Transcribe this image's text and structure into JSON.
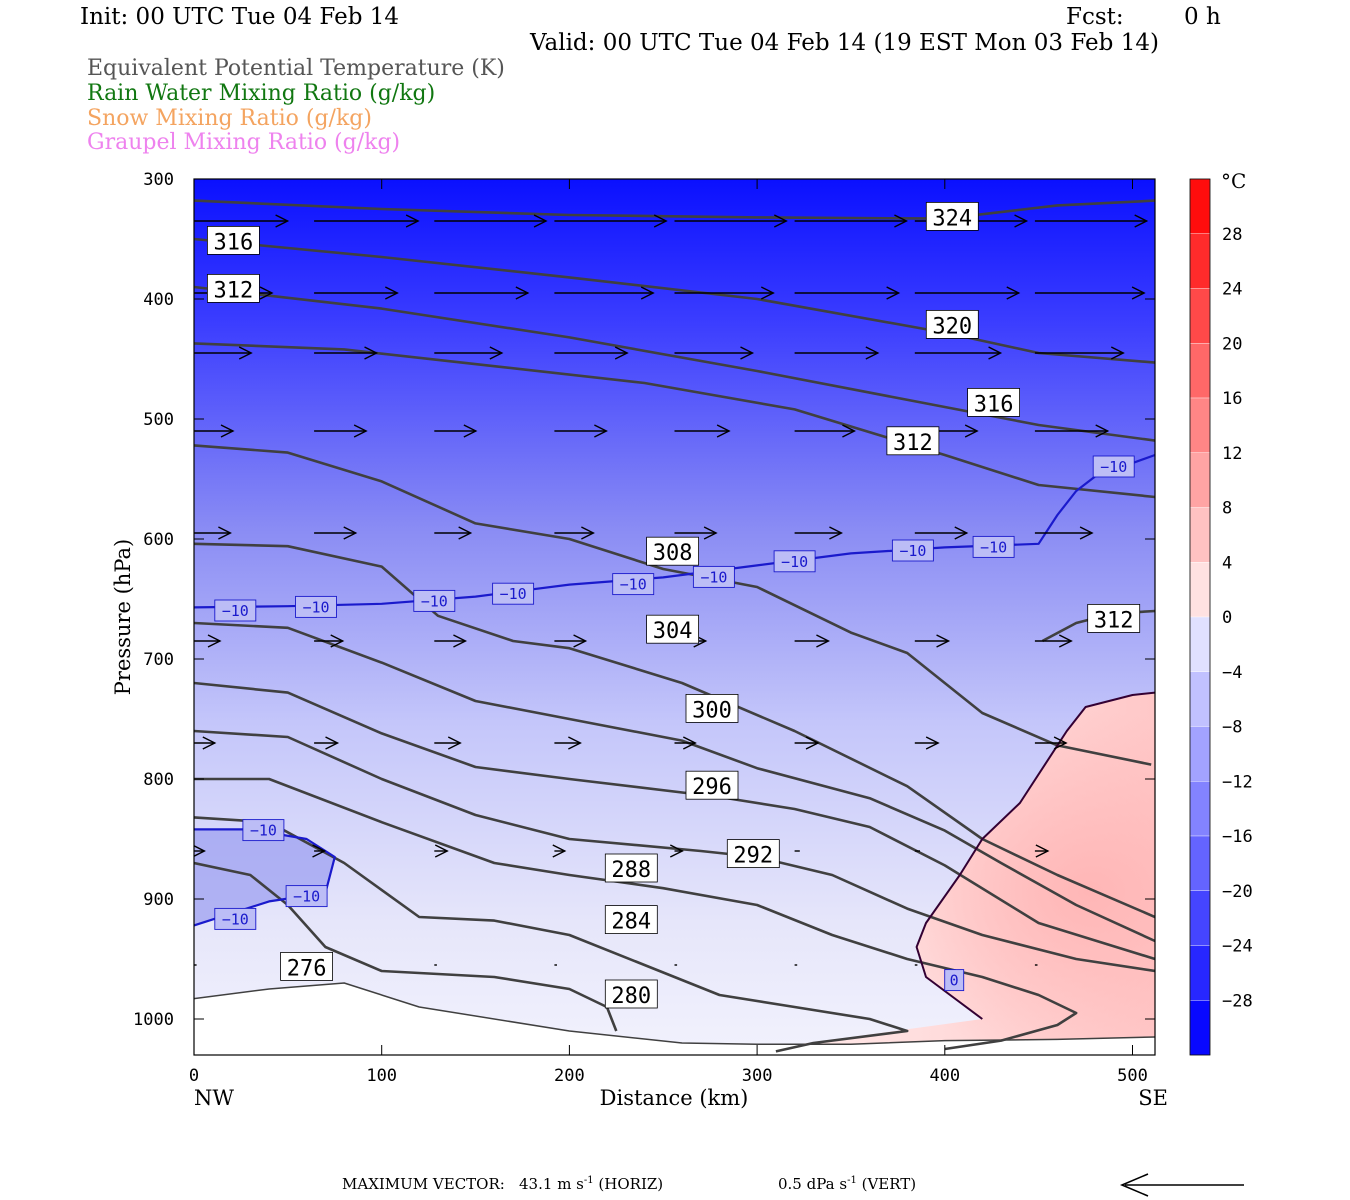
{
  "header": {
    "init": "Init: 00 UTC Tue 04 Feb 14",
    "fcst_label": "Fcst:",
    "fcst_value": "0 h",
    "valid": "Valid: 00 UTC Tue 04 Feb 14 (19 EST Mon 03 Feb 14)"
  },
  "legend": [
    {
      "text": "Equivalent Potential Temperature (K)",
      "color": "#555555"
    },
    {
      "text": "Rain Water Mixing Ratio (g/kg)",
      "color": "#117711"
    },
    {
      "text": "Snow Mixing Ratio (g/kg)",
      "color": "#f4a460"
    },
    {
      "text": "Graupel Mixing Ratio (g/kg)",
      "color": "#ee82ee"
    }
  ],
  "footer": {
    "max_vector_label": "MAXIMUM VECTOR:",
    "horiz_value": "43.1",
    "horiz_unit": "m s",
    "horiz_exp": "-1",
    "horiz_tag": "(HORIZ)",
    "vert_value": "0.5",
    "vert_unit": "dPa s",
    "vert_exp": "-1",
    "vert_tag": "(VERT)"
  },
  "chart_data": {
    "type": "cross-section",
    "xlabel": "Distance (km)",
    "ylabel": "Pressure (hPa)",
    "xlim": [
      0,
      512
    ],
    "ylim": [
      1030,
      300
    ],
    "x_ticks": [
      0,
      100,
      200,
      300,
      400,
      500
    ],
    "y_ticks": [
      300,
      400,
      500,
      600,
      700,
      800,
      900,
      1000
    ],
    "x_end_labels": {
      "left": "NW",
      "right": "SE"
    },
    "colorbar": {
      "unit": "°C",
      "tick_labels": [
        "28",
        "24",
        "20",
        "16",
        "12",
        "8",
        "4",
        "0",
        "−4",
        "−8",
        "−12",
        "−16",
        "−20",
        "−24",
        "−28"
      ],
      "tick_values": [
        28,
        24,
        20,
        16,
        12,
        8,
        4,
        0,
        -4,
        -8,
        -12,
        -16,
        -20,
        -24,
        -28
      ],
      "range": [
        -32,
        32
      ],
      "cold_color": "#0000ff",
      "warm_color": "#ff0000"
    },
    "theta_e_contours": [
      {
        "label": "324",
        "color": "#404040",
        "points": [
          [
            0,
            318
          ],
          [
            100,
            325
          ],
          [
            200,
            330
          ],
          [
            300,
            332
          ],
          [
            400,
            333
          ],
          [
            460,
            322
          ],
          [
            512,
            318
          ]
        ]
      },
      {
        "label": "320",
        "color": "#404040",
        "points": [
          [
            0,
            350
          ],
          [
            100,
            365
          ],
          [
            200,
            382
          ],
          [
            300,
            400
          ],
          [
            400,
            428
          ],
          [
            450,
            445
          ],
          [
            512,
            453
          ]
        ]
      },
      {
        "label": "316",
        "color": "#404040",
        "points": [
          [
            0,
            390
          ],
          [
            100,
            408
          ],
          [
            200,
            432
          ],
          [
            300,
            460
          ],
          [
            400,
            490
          ],
          [
            450,
            505
          ],
          [
            512,
            518
          ]
        ]
      },
      {
        "label": "312",
        "color": "#404040",
        "points": [
          [
            0,
            437
          ],
          [
            80,
            442
          ],
          [
            160,
            456
          ],
          [
            240,
            470
          ],
          [
            320,
            492
          ],
          [
            400,
            530
          ],
          [
            450,
            555
          ],
          [
            512,
            565
          ]
        ]
      },
      {
        "label": "308",
        "color": "#404040",
        "points": [
          [
            0,
            522
          ],
          [
            50,
            528
          ],
          [
            100,
            552
          ],
          [
            150,
            587
          ],
          [
            200,
            600
          ],
          [
            250,
            625
          ],
          [
            300,
            640
          ],
          [
            350,
            678
          ],
          [
            380,
            695
          ],
          [
            420,
            745
          ],
          [
            460,
            772
          ],
          [
            510,
            788
          ]
        ]
      },
      {
        "label": "304",
        "color": "#404040",
        "points": [
          [
            0,
            604
          ],
          [
            50,
            606
          ],
          [
            100,
            623
          ],
          [
            130,
            664
          ],
          [
            170,
            685
          ],
          [
            200,
            691
          ],
          [
            260,
            720
          ],
          [
            320,
            760
          ],
          [
            380,
            806
          ],
          [
            420,
            850
          ],
          [
            460,
            880
          ],
          [
            512,
            915
          ]
        ]
      },
      {
        "label": "300",
        "color": "#404040",
        "points": [
          [
            0,
            670
          ],
          [
            50,
            674
          ],
          [
            100,
            703
          ],
          [
            150,
            735
          ],
          [
            200,
            750
          ],
          [
            260,
            768
          ],
          [
            300,
            791
          ],
          [
            360,
            816
          ],
          [
            400,
            843
          ],
          [
            430,
            870
          ],
          [
            470,
            905
          ],
          [
            512,
            935
          ]
        ]
      },
      {
        "label": "296",
        "color": "#404040",
        "points": [
          [
            0,
            720
          ],
          [
            50,
            728
          ],
          [
            100,
            762
          ],
          [
            150,
            790
          ],
          [
            200,
            800
          ],
          [
            280,
            815
          ],
          [
            320,
            825
          ],
          [
            360,
            840
          ],
          [
            400,
            872
          ],
          [
            450,
            920
          ],
          [
            512,
            950
          ]
        ]
      },
      {
        "label": "292",
        "color": "#404040",
        "points": [
          [
            0,
            760
          ],
          [
            50,
            765
          ],
          [
            100,
            800
          ],
          [
            150,
            830
          ],
          [
            200,
            850
          ],
          [
            270,
            860
          ],
          [
            300,
            865
          ],
          [
            340,
            880
          ],
          [
            380,
            908
          ],
          [
            420,
            930
          ],
          [
            470,
            950
          ],
          [
            512,
            960
          ]
        ]
      },
      {
        "label": "288",
        "color": "#404040",
        "points": [
          [
            0,
            800
          ],
          [
            40,
            800
          ],
          [
            100,
            836
          ],
          [
            160,
            870
          ],
          [
            200,
            880
          ],
          [
            250,
            891
          ],
          [
            300,
            905
          ],
          [
            340,
            930
          ],
          [
            380,
            950
          ],
          [
            420,
            965
          ],
          [
            450,
            980
          ],
          [
            470,
            995
          ],
          [
            460,
            1005
          ],
          [
            430,
            1018
          ],
          [
            400,
            1025
          ]
        ]
      },
      {
        "label": "284",
        "color": "#404040",
        "points": [
          [
            0,
            832
          ],
          [
            40,
            836
          ],
          [
            80,
            870
          ],
          [
            120,
            915
          ],
          [
            160,
            918
          ],
          [
            200,
            930
          ],
          [
            240,
            955
          ],
          [
            280,
            980
          ],
          [
            320,
            990
          ],
          [
            360,
            1000
          ],
          [
            380,
            1010
          ],
          [
            330,
            1020
          ],
          [
            310,
            1027
          ]
        ]
      },
      {
        "label": "280",
        "color": "#404040",
        "points": [
          [
            0,
            870
          ],
          [
            30,
            880
          ],
          [
            50,
            905
          ],
          [
            70,
            940
          ],
          [
            100,
            960
          ],
          [
            160,
            965
          ],
          [
            200,
            975
          ],
          [
            220,
            990
          ],
          [
            225,
            1010
          ]
        ]
      },
      {
        "label": "276",
        "color": "#404040",
        "points": [
          [
            0,
            983
          ],
          [
            40,
            975
          ],
          [
            80,
            970
          ],
          [
            120,
            990
          ],
          [
            200,
            1010
          ],
          [
            260,
            1020
          ],
          [
            300,
            1021
          ],
          [
            350,
            1021
          ],
          [
            400,
            1018
          ],
          [
            460,
            1017
          ],
          [
            512,
            1015
          ]
        ]
      },
      {
        "label": "312",
        "color": "#404040",
        "points": [
          [
            452,
            685
          ],
          [
            470,
            670
          ],
          [
            490,
            662
          ],
          [
            512,
            660
          ]
        ]
      }
    ],
    "isotherm_minus10": {
      "label": "−10",
      "color": "#1a1acc",
      "points": [
        [
          0,
          657
        ],
        [
          50,
          656
        ],
        [
          100,
          654
        ],
        [
          150,
          648
        ],
        [
          200,
          638
        ],
        [
          250,
          632
        ],
        [
          300,
          622
        ],
        [
          350,
          612
        ],
        [
          400,
          607
        ],
        [
          450,
          604
        ],
        [
          460,
          580
        ],
        [
          470,
          560
        ],
        [
          480,
          548
        ],
        [
          512,
          530
        ]
      ]
    },
    "isotherm_minus10_low": {
      "label": "−10",
      "color": "#1a1acc",
      "points": [
        [
          0,
          842
        ],
        [
          30,
          842
        ],
        [
          60,
          850
        ],
        [
          75,
          865
        ],
        [
          70,
          895
        ],
        [
          40,
          902
        ],
        [
          0,
          922
        ]
      ]
    },
    "freezing_line": {
      "label": "0",
      "color": "#330033",
      "points": [
        [
          420,
          1000
        ],
        [
          390,
          965
        ],
        [
          385,
          940
        ],
        [
          390,
          920
        ],
        [
          408,
          880
        ],
        [
          420,
          850
        ],
        [
          440,
          820
        ],
        [
          465,
          760
        ],
        [
          475,
          740
        ],
        [
          500,
          730
        ],
        [
          512,
          728
        ]
      ]
    },
    "contour_labels": [
      {
        "text": "324",
        "x": 404,
        "y": 332
      },
      {
        "text": "316",
        "x": 21,
        "y": 352
      },
      {
        "text": "312",
        "x": 21,
        "y": 392
      },
      {
        "text": "320",
        "x": 404,
        "y": 422
      },
      {
        "text": "316",
        "x": 426,
        "y": 487
      },
      {
        "text": "312",
        "x": 383,
        "y": 519
      },
      {
        "text": "308",
        "x": 255,
        "y": 611
      },
      {
        "text": "304",
        "x": 255,
        "y": 676
      },
      {
        "text": "300",
        "x": 276,
        "y": 742
      },
      {
        "text": "296",
        "x": 276,
        "y": 806
      },
      {
        "text": "292",
        "x": 298,
        "y": 863
      },
      {
        "text": "288",
        "x": 233,
        "y": 875
      },
      {
        "text": "284",
        "x": 233,
        "y": 918
      },
      {
        "text": "280",
        "x": 233,
        "y": 980
      },
      {
        "text": "276",
        "x": 60,
        "y": 957
      },
      {
        "text": "312",
        "x": 490,
        "y": 667
      }
    ],
    "isotherm_labels": [
      {
        "text": "−10",
        "x": 22,
        "y": 660
      },
      {
        "text": "−10",
        "x": 65,
        "y": 657
      },
      {
        "text": "−10",
        "x": 128,
        "y": 652
      },
      {
        "text": "−10",
        "x": 170,
        "y": 646
      },
      {
        "text": "−10",
        "x": 234,
        "y": 638
      },
      {
        "text": "−10",
        "x": 277,
        "y": 632
      },
      {
        "text": "−10",
        "x": 320,
        "y": 619
      },
      {
        "text": "−10",
        "x": 383,
        "y": 610
      },
      {
        "text": "−10",
        "x": 426,
        "y": 607
      },
      {
        "text": "−10",
        "x": 490,
        "y": 540
      },
      {
        "text": "−10",
        "x": 37,
        "y": 843
      },
      {
        "text": "−10",
        "x": 60,
        "y": 898
      },
      {
        "text": "−10",
        "x": 22,
        "y": 917
      },
      {
        "text": "0",
        "x": 405,
        "y": 968
      }
    ],
    "wind_vectors": {
      "x_positions": [
        0,
        64,
        128,
        192,
        256,
        320,
        384,
        448,
        512
      ],
      "rows": [
        {
          "p": 335,
          "speeds": [
            36,
            40,
            43,
            43,
            43,
            43,
            43,
            43,
            43
          ]
        },
        {
          "p": 395,
          "speeds": [
            30,
            32,
            36,
            38,
            38,
            40,
            40,
            42,
            43
          ]
        },
        {
          "p": 445,
          "speeds": [
            22,
            24,
            26,
            28,
            30,
            32,
            33,
            34,
            35
          ]
        },
        {
          "p": 510,
          "speeds": [
            15,
            20,
            16,
            20,
            21,
            23,
            24,
            28,
            30
          ]
        },
        {
          "p": 595,
          "speeds": [
            14,
            16,
            14,
            15,
            16,
            18,
            20,
            22,
            24
          ]
        },
        {
          "p": 685,
          "speeds": [
            10,
            11,
            12,
            12,
            12,
            13,
            13,
            14,
            15
          ]
        },
        {
          "p": 770,
          "speeds": [
            8,
            9,
            10,
            10,
            8,
            9,
            9,
            12,
            15
          ]
        },
        {
          "p": 860,
          "speeds": [
            4,
            4,
            5,
            4,
            3,
            2,
            2,
            5,
            6
          ]
        },
        {
          "p": 955,
          "speeds": [
            1,
            1,
            1,
            1,
            1,
            1,
            1,
            1,
            2
          ]
        }
      ]
    }
  }
}
